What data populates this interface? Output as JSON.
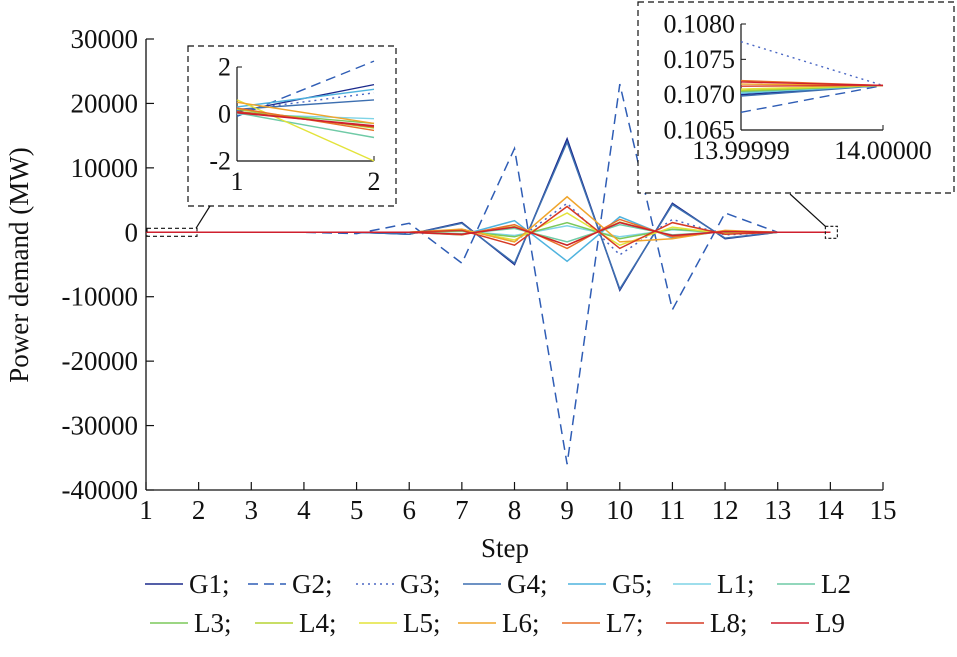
{
  "chart_data": {
    "type": "line",
    "title": "",
    "xlabel": "Step",
    "ylabel": "Power demand (MW)",
    "xlim": [
      1,
      15
    ],
    "ylim": [
      -40000,
      30000
    ],
    "x_ticks": [
      1,
      2,
      3,
      4,
      5,
      6,
      7,
      8,
      9,
      10,
      11,
      12,
      13,
      14,
      15
    ],
    "y_ticks": [
      30000,
      20000,
      10000,
      0,
      -10000,
      -20000,
      -30000,
      -40000
    ],
    "grid": false,
    "legend_position": "bottom",
    "x": [
      1,
      2,
      3,
      4,
      5,
      6,
      7,
      8,
      9,
      10,
      11,
      12,
      13,
      14
    ],
    "series": [
      {
        "name": "G1",
        "color": "#1b2a8c",
        "dash": "solid",
        "values": [
          0,
          0,
          0,
          0,
          0,
          -300,
          1500,
          -5000,
          14500,
          -9000,
          4500,
          -1000,
          0,
          0
        ]
      },
      {
        "name": "G2",
        "color": "#2f5db5",
        "dash": "dashed",
        "values": [
          0,
          0,
          0,
          0,
          -200,
          1400,
          -4800,
          13000,
          -36000,
          23000,
          -12000,
          3000,
          0,
          0
        ]
      },
      {
        "name": "G3",
        "color": "#4a67c4",
        "dash": "dotted",
        "values": [
          0,
          0,
          0,
          0,
          0,
          -200,
          500,
          -1500,
          4500,
          -3500,
          2000,
          -400,
          0,
          0
        ]
      },
      {
        "name": "G4",
        "color": "#3d6fb0",
        "dash": "solid",
        "values": [
          0,
          0,
          0,
          0,
          0,
          -300,
          1400,
          -4800,
          14000,
          -8800,
          4300,
          -900,
          0,
          0
        ]
      },
      {
        "name": "G5",
        "color": "#4fb3de",
        "dash": "solid",
        "values": [
          0,
          0,
          0,
          0,
          0,
          0,
          -400,
          1800,
          -4500,
          2400,
          -900,
          200,
          0,
          0
        ]
      },
      {
        "name": "L1",
        "color": "#7fd4e6",
        "dash": "solid",
        "values": [
          0,
          0,
          0,
          0,
          0,
          0,
          200,
          -500,
          1000,
          -700,
          400,
          -100,
          0,
          0
        ]
      },
      {
        "name": "L2",
        "color": "#6fcaa6",
        "dash": "solid",
        "values": [
          0,
          0,
          0,
          0,
          0,
          0,
          -200,
          600,
          -1500,
          1200,
          -400,
          100,
          0,
          0
        ]
      },
      {
        "name": "L3",
        "color": "#7cc85a",
        "dash": "solid",
        "values": [
          0,
          0,
          0,
          0,
          0,
          0,
          200,
          -700,
          1500,
          -1000,
          500,
          -100,
          0,
          0
        ]
      },
      {
        "name": "L4",
        "color": "#b5d334",
        "dash": "solid",
        "values": [
          0,
          0,
          0,
          0,
          0,
          0,
          -300,
          900,
          -2000,
          1600,
          -600,
          150,
          0,
          0
        ]
      },
      {
        "name": "L5",
        "color": "#e3e33a",
        "dash": "solid",
        "values": [
          0,
          0,
          0,
          0,
          0,
          0,
          400,
          -1200,
          3000,
          -2000,
          800,
          -200,
          0,
          0
        ]
      },
      {
        "name": "L6",
        "color": "#f0a52c",
        "dash": "solid",
        "values": [
          0,
          0,
          0,
          0,
          0,
          0,
          500,
          -1500,
          5500,
          -1500,
          -1000,
          300,
          0,
          0
        ]
      },
      {
        "name": "L7",
        "color": "#e8702a",
        "dash": "solid",
        "values": [
          0,
          0,
          0,
          0,
          0,
          0,
          -400,
          1200,
          -2500,
          2000,
          -700,
          150,
          0,
          0
        ]
      },
      {
        "name": "L8",
        "color": "#d63a25",
        "dash": "solid",
        "values": [
          0,
          0,
          0,
          0,
          0,
          0,
          300,
          -2000,
          4000,
          -2500,
          1500,
          -300,
          0,
          0
        ]
      },
      {
        "name": "L9",
        "color": "#cf1f2e",
        "dash": "solid",
        "values": [
          0,
          0,
          0,
          0,
          0,
          0,
          -300,
          800,
          -2000,
          1500,
          -500,
          100,
          0,
          0
        ]
      }
    ],
    "insets": [
      {
        "xlim": [
          1,
          2
        ],
        "ylim": [
          -2,
          2
        ],
        "x_ticks": [
          "1",
          "2"
        ],
        "y_ticks": [
          "2",
          "0",
          "-2"
        ],
        "y_tick_values": [
          2,
          0,
          -2
        ],
        "x_tick_values": [
          1,
          2
        ],
        "start_values": [
          0.1,
          -0.1,
          0.15,
          0.2,
          0.3,
          0.0,
          0.05,
          0.1,
          0.2,
          0.6,
          0.5,
          0.25,
          0.1,
          0.05
        ],
        "end_values": [
          1.25,
          2.25,
          0.9,
          0.6,
          1.05,
          -0.2,
          -1.0,
          -0.4,
          -0.6,
          -2.0,
          -0.4,
          -0.7,
          -0.55,
          -0.5
        ]
      },
      {
        "xlim": [
          13.99999,
          14.0
        ],
        "ylim": [
          0.1065,
          0.108
        ],
        "x_ticks": [
          "13.99999",
          "14.00000"
        ],
        "y_ticks": [
          "0.1080",
          "0.1075",
          "0.1070",
          "0.1065"
        ],
        "y_tick_values": [
          0.108,
          0.1075,
          0.107,
          0.1065
        ],
        "x_tick_values": [
          13.99999,
          14.0
        ],
        "start_values": [
          0.107,
          0.10675,
          0.10775,
          0.10698,
          0.10702,
          0.10703,
          0.10704,
          0.10705,
          0.10706,
          0.10708,
          0.10715,
          0.1072,
          0.10712,
          0.10718
        ],
        "end_values": [
          0.10713,
          0.10713,
          0.10713,
          0.10713,
          0.10713,
          0.10713,
          0.10713,
          0.10713,
          0.10713,
          0.10713,
          0.10713,
          0.10713,
          0.10713,
          0.10713
        ]
      }
    ]
  }
}
